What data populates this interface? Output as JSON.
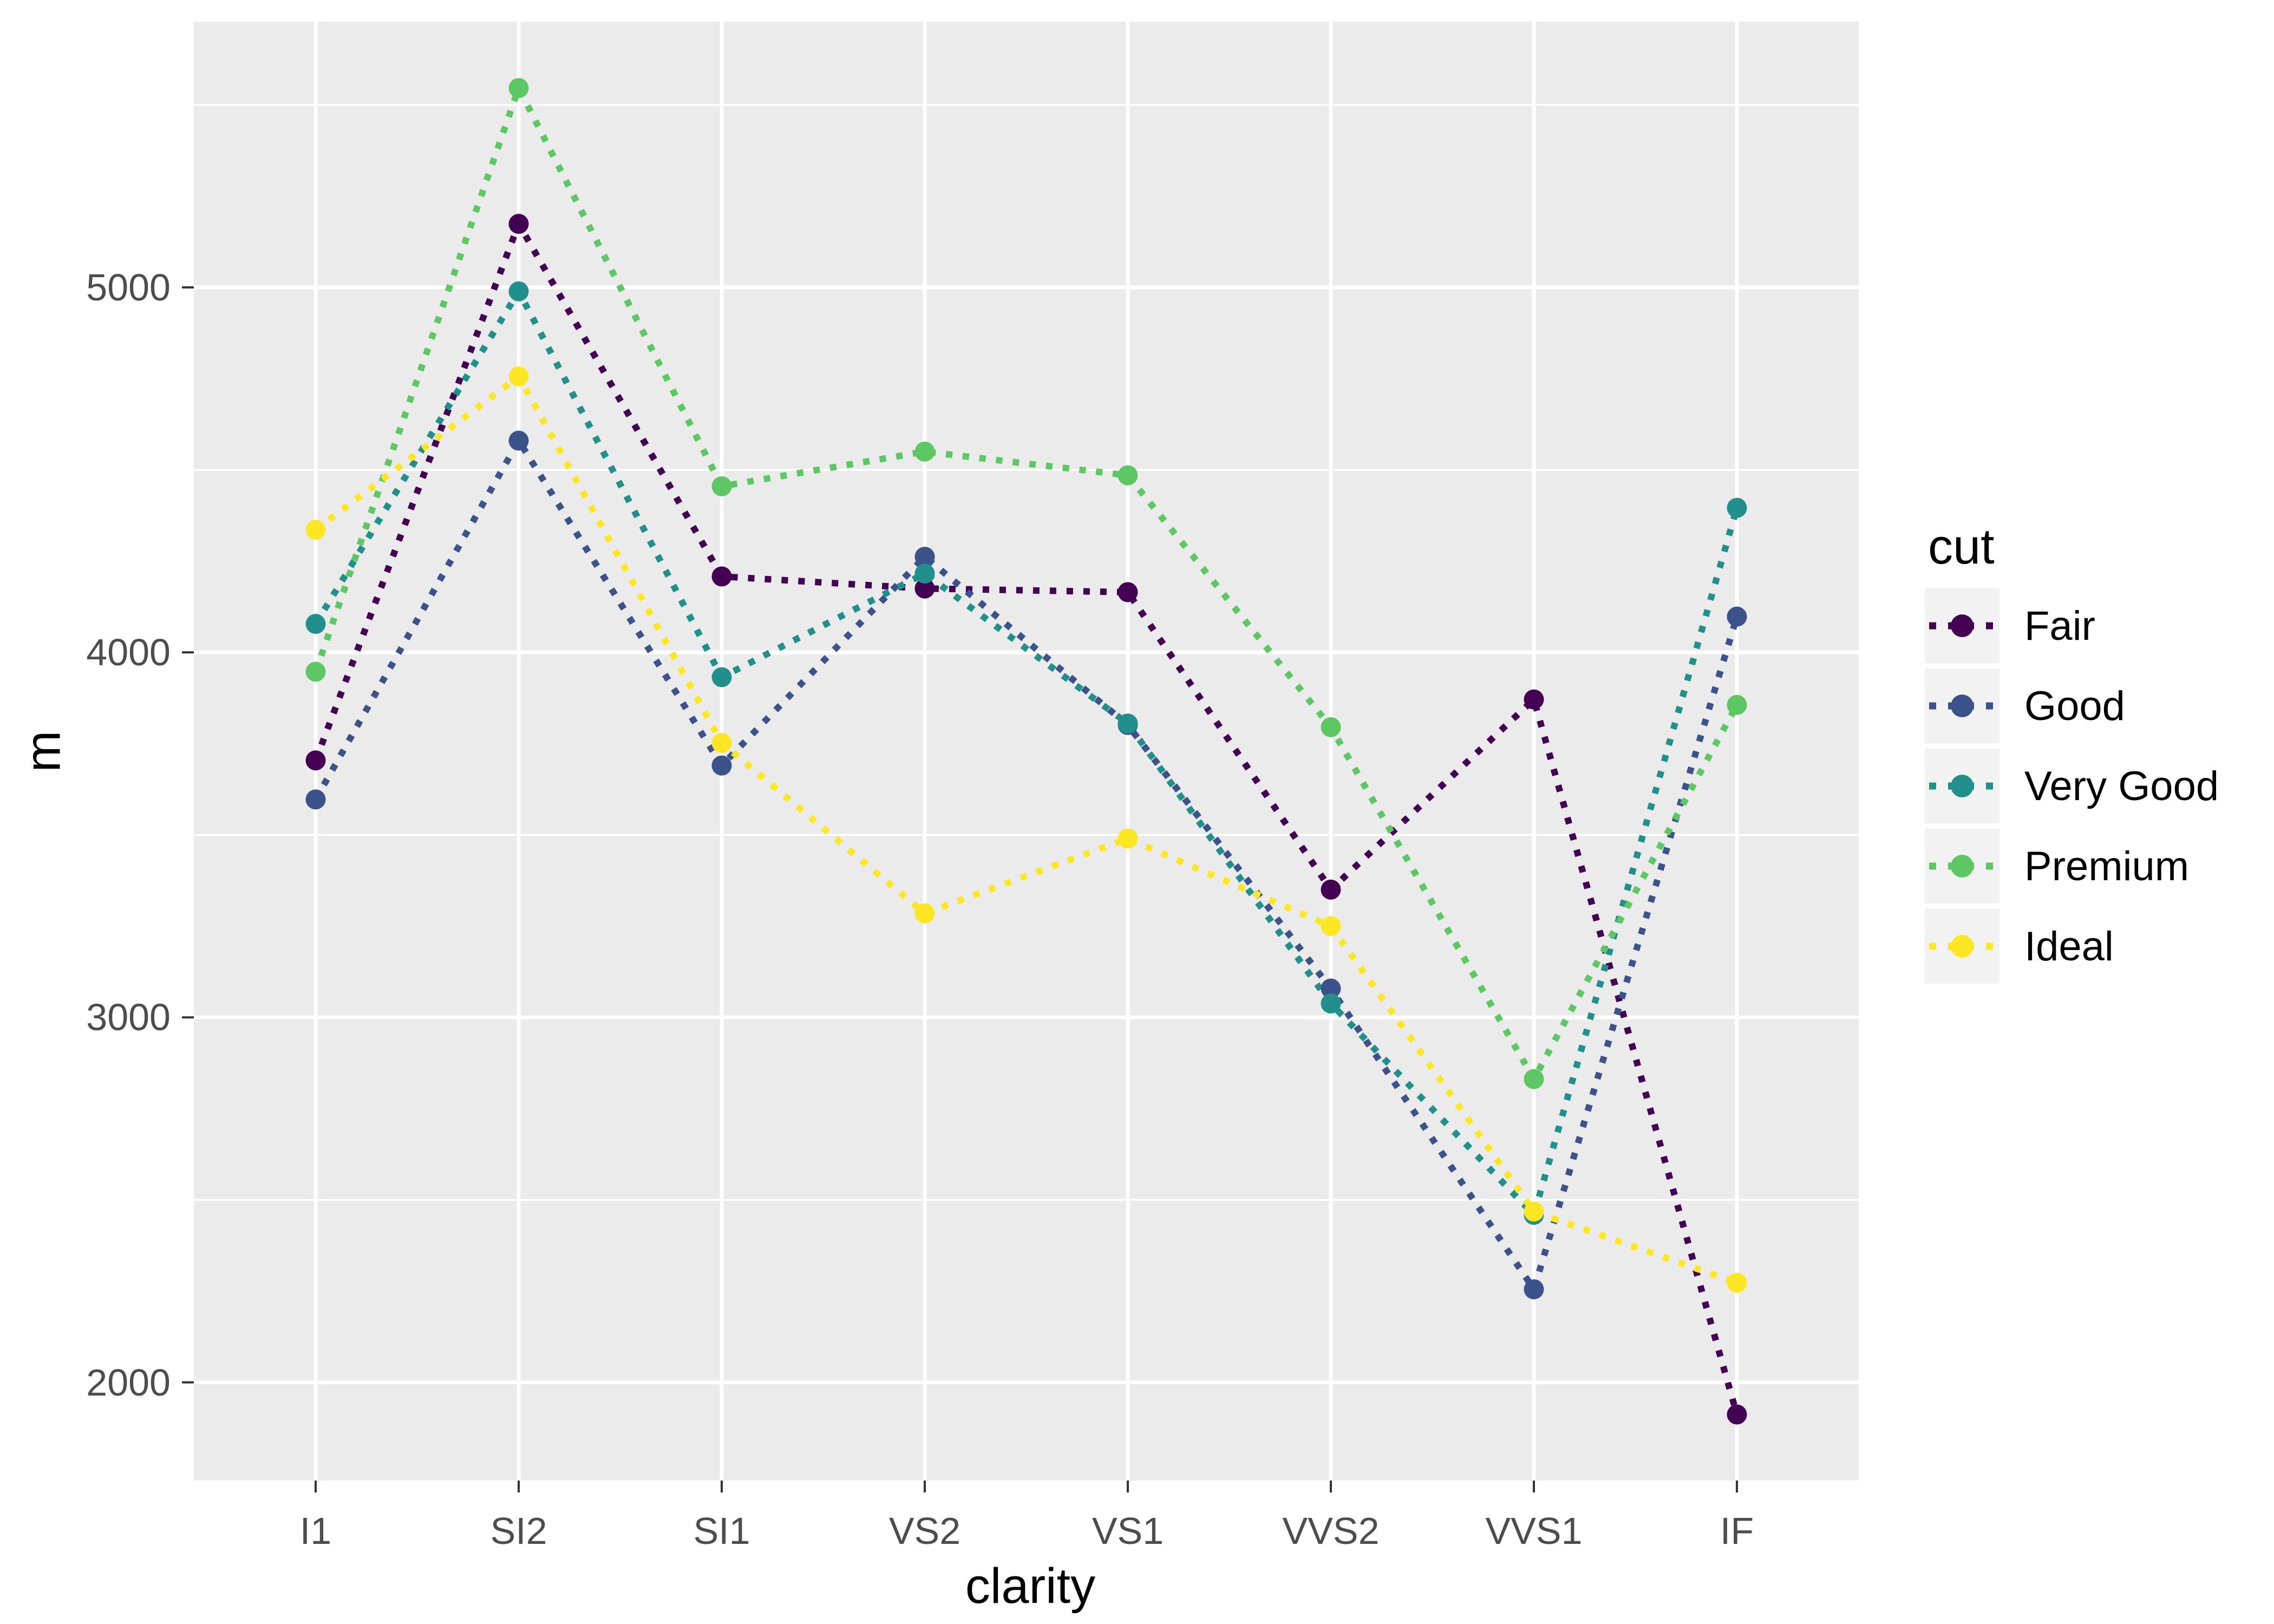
{
  "chart_data": {
    "type": "line",
    "title": "",
    "xlabel": "clarity",
    "ylabel": "m",
    "legend_title": "cut",
    "legend_position": "right",
    "categories": [
      "I1",
      "SI2",
      "SI1",
      "VS2",
      "VS1",
      "VVS2",
      "VVS1",
      "IF"
    ],
    "series": [
      {
        "name": "Fair",
        "color": "#440154",
        "values": [
          3704,
          5174,
          4208,
          4175,
          4165,
          3350,
          3871,
          1912
        ]
      },
      {
        "name": "Good",
        "color": "#3B528B",
        "values": [
          3597,
          4580,
          3690,
          4262,
          3801,
          3079,
          2255,
          4098
        ]
      },
      {
        "name": "Very Good",
        "color": "#21908C",
        "values": [
          4078,
          4989,
          3932,
          4216,
          3805,
          3038,
          2459,
          4396
        ]
      },
      {
        "name": "Premium",
        "color": "#5DC863",
        "values": [
          3947,
          5546,
          4455,
          4550,
          4485,
          3795,
          2831,
          3856
        ]
      },
      {
        "name": "Ideal",
        "color": "#FDE725",
        "values": [
          4336,
          4756,
          3752,
          3285,
          3490,
          3250,
          2468,
          2273
        ]
      }
    ],
    "ylim": [
      1731,
      5728
    ],
    "yticks": [
      2000,
      3000,
      4000,
      5000
    ],
    "ytick_labels": [
      "2000",
      "3000",
      "4000",
      "5000"
    ],
    "yminor": [
      2500,
      3500,
      4500,
      5500
    ],
    "line_style": "dotted",
    "marker": "circle",
    "grid": "major-and-minor",
    "panel_background": "#EBEBEB",
    "grid_color": "#FFFFFF",
    "axis_text_color": "#4D4D4D",
    "axis_title_color": "#000000",
    "tick_color": "#333333",
    "legend_key_background": "#F2F2F2"
  }
}
